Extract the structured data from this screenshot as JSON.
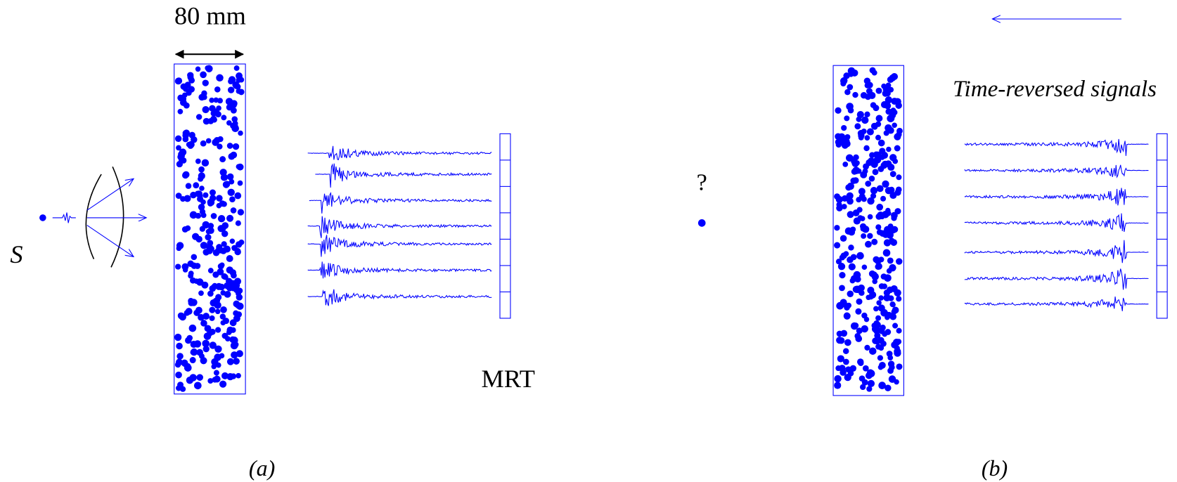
{
  "panel_a": {
    "width_label": "80 mm",
    "source_label": "S",
    "mirror_label": "MRT",
    "caption": "(a)"
  },
  "panel_b": {
    "question": "?",
    "signals_label": "Time-reversed signals",
    "caption": "(b)"
  }
}
